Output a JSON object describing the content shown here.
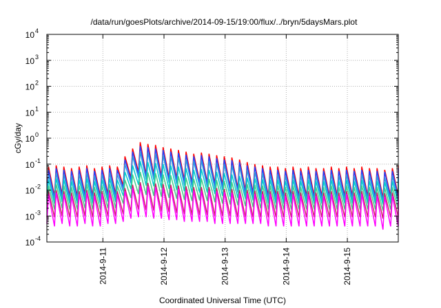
{
  "chart_data": {
    "type": "line",
    "title": "/data/run/goesPlots/archive/2014-09-15/19:00/flux/../bryn/5daysMars.plot",
    "xlabel": "Coordinated Universal Time (UTC)",
    "ylabel": "cGy/day",
    "y_scale": "log",
    "ylim": [
      0.0001,
      10000
    ],
    "y_ticks": [
      {
        "base": "10",
        "exp": "4"
      },
      {
        "base": "10",
        "exp": "3"
      },
      {
        "base": "10",
        "exp": "2"
      },
      {
        "base": "10",
        "exp": "1"
      },
      {
        "base": "10",
        "exp": "0"
      },
      {
        "base": "10",
        "exp": "-1"
      },
      {
        "base": "10",
        "exp": "-2"
      },
      {
        "base": "10",
        "exp": "-3"
      },
      {
        "base": "10",
        "exp": "-4"
      }
    ],
    "xlim": [
      "2014-09-10 02:00",
      "2014-09-15 20:00"
    ],
    "x_ticks": [
      "2014-9-11",
      "2014-9-12",
      "2014-9-13",
      "2014-9-14",
      "2014-9-15"
    ],
    "grid": true,
    "cycle_hours": 3,
    "series": [
      {
        "color": "#ff0000",
        "peaks": [
          0.08,
          0.09,
          0.08,
          0.07,
          0.08,
          0.09,
          0.07,
          0.08,
          0.09,
          0.08,
          0.2,
          0.4,
          0.7,
          0.6,
          0.55,
          0.45,
          0.4,
          0.35,
          0.3,
          0.25,
          0.28,
          0.25,
          0.22,
          0.2,
          0.18,
          0.15,
          0.12,
          0.1,
          0.09,
          0.08,
          0.08,
          0.07,
          0.08,
          0.07,
          0.08,
          0.07,
          0.07,
          0.08,
          0.07,
          0.08,
          0.07,
          0.08,
          0.07,
          0.07,
          0.06,
          0.07,
          0.08,
          0.09,
          0.08,
          0.07,
          0.08,
          0.09,
          0.08,
          0.08,
          0.09,
          0.08
        ],
        "troughs": [
          0.006,
          0.006,
          0.007,
          0.006,
          0.006,
          0.007,
          0.006,
          0.006,
          0.007,
          0.007,
          0.015,
          0.03,
          0.05,
          0.04,
          0.04,
          0.035,
          0.03,
          0.028,
          0.025,
          0.02,
          0.022,
          0.02,
          0.018,
          0.016,
          0.014,
          0.012,
          0.01,
          0.008,
          0.007,
          0.006,
          0.006,
          0.006,
          0.006,
          0.006,
          0.006,
          0.006,
          0.006,
          0.006,
          0.006,
          0.006,
          0.006,
          0.006,
          0.006,
          0.006,
          0.005,
          0.006,
          0.006,
          0.007,
          0.006,
          0.006,
          0.006,
          0.007,
          0.006,
          0.006,
          0.007,
          0.006
        ]
      },
      {
        "color": "#2244ff",
        "peaks": [
          0.06,
          0.07,
          0.06,
          0.055,
          0.06,
          0.07,
          0.055,
          0.06,
          0.07,
          0.06,
          0.15,
          0.3,
          0.5,
          0.45,
          0.4,
          0.35,
          0.3,
          0.27,
          0.23,
          0.2,
          0.22,
          0.2,
          0.17,
          0.15,
          0.14,
          0.12,
          0.09,
          0.08,
          0.07,
          0.06,
          0.06,
          0.055,
          0.06,
          0.055,
          0.06,
          0.055,
          0.055,
          0.06,
          0.055,
          0.06,
          0.055,
          0.06,
          0.055,
          0.055,
          0.05,
          0.055,
          0.06,
          0.07,
          0.06,
          0.055,
          0.06,
          0.07,
          0.06,
          0.06,
          0.07,
          0.06
        ],
        "troughs": [
          0.005,
          0.005,
          0.006,
          0.005,
          0.005,
          0.006,
          0.005,
          0.005,
          0.006,
          0.006,
          0.012,
          0.025,
          0.04,
          0.033,
          0.033,
          0.028,
          0.025,
          0.023,
          0.02,
          0.017,
          0.018,
          0.017,
          0.015,
          0.013,
          0.012,
          0.01,
          0.008,
          0.007,
          0.006,
          0.005,
          0.005,
          0.005,
          0.005,
          0.005,
          0.005,
          0.005,
          0.005,
          0.005,
          0.005,
          0.005,
          0.005,
          0.005,
          0.005,
          0.005,
          0.004,
          0.005,
          0.005,
          0.006,
          0.005,
          0.005,
          0.005,
          0.006,
          0.005,
          0.005,
          0.006,
          0.005
        ]
      },
      {
        "color": "#3399dd",
        "peaks": [
          0.04,
          0.045,
          0.04,
          0.035,
          0.04,
          0.045,
          0.035,
          0.04,
          0.045,
          0.04,
          0.1,
          0.2,
          0.3,
          0.28,
          0.25,
          0.22,
          0.2,
          0.18,
          0.15,
          0.13,
          0.14,
          0.13,
          0.11,
          0.1,
          0.09,
          0.08,
          0.06,
          0.05,
          0.045,
          0.04,
          0.04,
          0.035,
          0.04,
          0.035,
          0.04,
          0.035,
          0.035,
          0.04,
          0.035,
          0.04,
          0.035,
          0.04,
          0.035,
          0.035,
          0.03,
          0.035,
          0.04,
          0.045,
          0.04,
          0.035,
          0.04,
          0.045,
          0.04,
          0.04,
          0.045,
          0.04
        ],
        "troughs": [
          0.004,
          0.004,
          0.0045,
          0.004,
          0.004,
          0.0045,
          0.004,
          0.004,
          0.0045,
          0.0045,
          0.009,
          0.018,
          0.03,
          0.025,
          0.025,
          0.021,
          0.019,
          0.017,
          0.015,
          0.013,
          0.014,
          0.013,
          0.011,
          0.01,
          0.009,
          0.008,
          0.006,
          0.005,
          0.0045,
          0.004,
          0.004,
          0.004,
          0.004,
          0.004,
          0.004,
          0.004,
          0.004,
          0.004,
          0.004,
          0.004,
          0.004,
          0.004,
          0.004,
          0.004,
          0.0035,
          0.004,
          0.004,
          0.0045,
          0.004,
          0.004,
          0.004,
          0.0045,
          0.004,
          0.004,
          0.0045,
          0.004
        ]
      },
      {
        "color": "#00cccc",
        "peaks": [
          0.025,
          0.028,
          0.025,
          0.022,
          0.025,
          0.028,
          0.022,
          0.025,
          0.028,
          0.025,
          0.05,
          0.09,
          0.13,
          0.12,
          0.11,
          0.1,
          0.09,
          0.08,
          0.07,
          0.06,
          0.065,
          0.06,
          0.05,
          0.045,
          0.04,
          0.035,
          0.03,
          0.028,
          0.026,
          0.025,
          0.025,
          0.022,
          0.025,
          0.022,
          0.025,
          0.022,
          0.022,
          0.025,
          0.022,
          0.025,
          0.022,
          0.025,
          0.022,
          0.022,
          0.02,
          0.022,
          0.025,
          0.028,
          0.025,
          0.022,
          0.025,
          0.028,
          0.025,
          0.025,
          0.028,
          0.025
        ],
        "troughs": [
          0.003,
          0.003,
          0.0035,
          0.003,
          0.003,
          0.0035,
          0.003,
          0.003,
          0.0035,
          0.0035,
          0.006,
          0.011,
          0.016,
          0.015,
          0.014,
          0.012,
          0.011,
          0.01,
          0.009,
          0.008,
          0.008,
          0.008,
          0.007,
          0.006,
          0.0055,
          0.005,
          0.0045,
          0.004,
          0.0035,
          0.003,
          0.003,
          0.003,
          0.003,
          0.003,
          0.003,
          0.003,
          0.003,
          0.003,
          0.003,
          0.003,
          0.003,
          0.003,
          0.003,
          0.003,
          0.0028,
          0.003,
          0.003,
          0.0035,
          0.003,
          0.003,
          0.003,
          0.0035,
          0.003,
          0.003,
          0.0035,
          0.003
        ]
      },
      {
        "color": "#44cc88",
        "peaks": [
          0.015,
          0.017,
          0.015,
          0.013,
          0.015,
          0.017,
          0.013,
          0.015,
          0.017,
          0.015,
          0.025,
          0.04,
          0.05,
          0.048,
          0.045,
          0.04,
          0.037,
          0.034,
          0.03,
          0.027,
          0.028,
          0.027,
          0.024,
          0.022,
          0.02,
          0.018,
          0.017,
          0.016,
          0.015,
          0.015,
          0.015,
          0.013,
          0.015,
          0.013,
          0.015,
          0.013,
          0.013,
          0.015,
          0.013,
          0.015,
          0.013,
          0.015,
          0.013,
          0.013,
          0.012,
          0.013,
          0.015,
          0.017,
          0.015,
          0.013,
          0.015,
          0.017,
          0.015,
          0.015,
          0.017,
          0.015
        ],
        "troughs": [
          0.0018,
          0.0018,
          0.002,
          0.0018,
          0.0018,
          0.002,
          0.0018,
          0.0018,
          0.002,
          0.002,
          0.003,
          0.005,
          0.007,
          0.0065,
          0.006,
          0.0055,
          0.005,
          0.0046,
          0.0042,
          0.0038,
          0.004,
          0.0038,
          0.0034,
          0.003,
          0.0028,
          0.0026,
          0.0024,
          0.0022,
          0.002,
          0.0018,
          0.0018,
          0.0018,
          0.0018,
          0.0018,
          0.0018,
          0.0018,
          0.0018,
          0.0018,
          0.0018,
          0.0018,
          0.0018,
          0.0018,
          0.0018,
          0.0018,
          0.0016,
          0.0018,
          0.0018,
          0.002,
          0.0018,
          0.0018,
          0.0018,
          0.002,
          0.0018,
          0.0018,
          0.002,
          0.0018
        ]
      },
      {
        "color": "#cc2266",
        "peaks": [
          0.009,
          0.01,
          0.009,
          0.008,
          0.009,
          0.01,
          0.008,
          0.009,
          0.01,
          0.009,
          0.012,
          0.016,
          0.02,
          0.019,
          0.018,
          0.017,
          0.016,
          0.015,
          0.014,
          0.013,
          0.013,
          0.013,
          0.012,
          0.011,
          0.011,
          0.01,
          0.01,
          0.0095,
          0.009,
          0.009,
          0.009,
          0.008,
          0.009,
          0.008,
          0.009,
          0.008,
          0.008,
          0.009,
          0.008,
          0.009,
          0.008,
          0.009,
          0.008,
          0.008,
          0.0075,
          0.008,
          0.009,
          0.01,
          0.009,
          0.008,
          0.009,
          0.01,
          0.009,
          0.009,
          0.01,
          0.009
        ],
        "troughs": [
          0.0009,
          0.0009,
          0.001,
          0.0009,
          0.0009,
          0.001,
          0.0009,
          0.0009,
          0.001,
          0.001,
          0.0012,
          0.0015,
          0.0018,
          0.0017,
          0.0016,
          0.0015,
          0.0014,
          0.0013,
          0.0012,
          0.0011,
          0.0011,
          0.0011,
          0.001,
          0.001,
          0.001,
          0.0009,
          0.0009,
          0.0009,
          0.0009,
          0.0009,
          0.0009,
          0.0009,
          0.0009,
          0.0009,
          0.0009,
          0.0009,
          0.0009,
          0.0009,
          0.0009,
          0.0009,
          0.0009,
          0.0009,
          0.0009,
          0.0009,
          0.0008,
          0.0009,
          0.0009,
          0.001,
          0.0009,
          0.0009,
          0.0009,
          0.001,
          0.0009,
          0.0009,
          0.001,
          0.0009
        ]
      },
      {
        "color": "#ff00ff",
        "peaks": [
          0.007,
          0.008,
          0.007,
          0.006,
          0.007,
          0.008,
          0.006,
          0.007,
          0.008,
          0.007,
          0.009,
          0.012,
          0.015,
          0.014,
          0.013,
          0.012,
          0.012,
          0.011,
          0.01,
          0.0095,
          0.0095,
          0.0095,
          0.009,
          0.0085,
          0.008,
          0.0075,
          0.0075,
          0.007,
          0.007,
          0.007,
          0.007,
          0.006,
          0.007,
          0.006,
          0.007,
          0.006,
          0.006,
          0.007,
          0.006,
          0.007,
          0.006,
          0.007,
          0.006,
          0.006,
          0.0055,
          0.006,
          0.007,
          0.008,
          0.007,
          0.006,
          0.007,
          0.008,
          0.007,
          0.007,
          0.008,
          0.007
        ],
        "troughs": [
          0.0005,
          0.0004,
          0.0005,
          0.0004,
          0.0004,
          0.0005,
          0.0004,
          0.0004,
          0.0005,
          0.0005,
          0.0006,
          0.0008,
          0.0009,
          0.0009,
          0.0008,
          0.0008,
          0.0007,
          0.0007,
          0.0006,
          0.0006,
          0.0006,
          0.0006,
          0.0005,
          0.0005,
          0.0005,
          0.0005,
          0.0005,
          0.0005,
          0.0005,
          0.0004,
          0.0004,
          0.0004,
          0.0004,
          0.0004,
          0.0004,
          0.0004,
          0.0004,
          0.0004,
          0.0004,
          0.0004,
          0.0004,
          0.0004,
          0.0004,
          0.0004,
          0.0003,
          0.0004,
          0.0004,
          0.0005,
          0.0004,
          0.0004,
          0.0004,
          0.0005,
          0.0004,
          0.0004,
          0.0005,
          0.0004
        ]
      }
    ]
  }
}
